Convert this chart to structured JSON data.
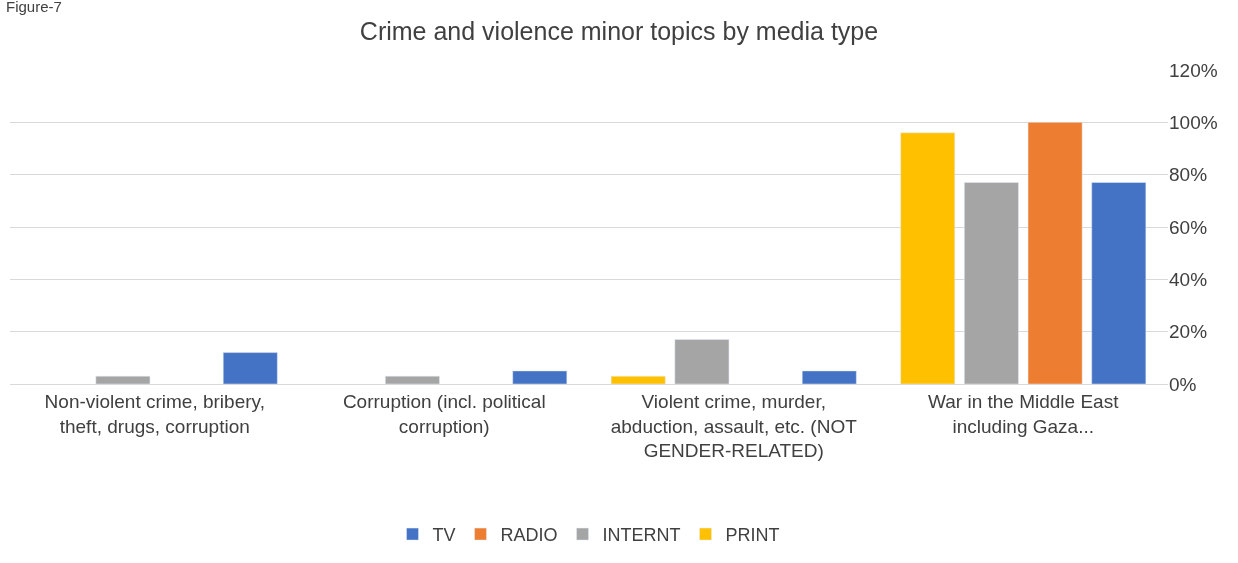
{
  "chart_data": {
    "type": "bar",
    "title": "Crime and violence minor topics by media type",
    "annotations": [
      "Figure-7"
    ],
    "categories": [
      "Non-violent crime, bribery, theft, drugs, corruption",
      "Corruption (incl. political corruption)",
      "Violent crime, murder, abduction, assault, etc. (NOT GENDER-RELATED)",
      "War in the Middle East including Gaza..."
    ],
    "series": [
      {
        "name": "TV",
        "color": "#4472c4",
        "values": [
          12,
          5,
          5,
          77
        ]
      },
      {
        "name": "RADIO",
        "color": "#ed7d31",
        "values": [
          null,
          null,
          null,
          100
        ]
      },
      {
        "name": "INTERNT",
        "color": "#a5a5a5",
        "values": [
          3,
          3,
          17,
          77
        ]
      },
      {
        "name": "PRINT",
        "color": "#ffc000",
        "values": [
          null,
          null,
          3,
          96
        ]
      }
    ],
    "ylim": [
      0,
      120
    ],
    "yticks": [
      {
        "value": 0,
        "label": "0%"
      },
      {
        "value": 20,
        "label": "20%"
      },
      {
        "value": 40,
        "label": "40%"
      },
      {
        "value": 60,
        "label": "60%"
      },
      {
        "value": 80,
        "label": "80%"
      },
      {
        "value": 100,
        "label": "100%"
      },
      {
        "value": 120,
        "label": "120%"
      }
    ],
    "grid": "y",
    "legend": "bottom"
  }
}
